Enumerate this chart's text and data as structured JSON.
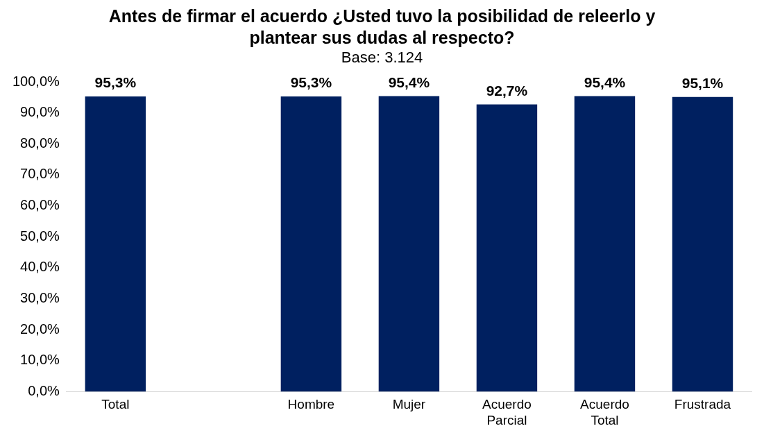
{
  "chart_data": {
    "type": "bar",
    "title": "Antes de firmar el acuerdo ¿Usted tuvo la posibilidad de releerlo y plantear sus dudas al respecto?",
    "subtitle": "Base: 3.124",
    "categories": [
      "Total",
      null,
      "Hombre",
      "Mujer",
      "Acuerdo Parcial",
      "Acuerdo Total",
      "Frustrada"
    ],
    "values": [
      95.3,
      null,
      95.3,
      95.4,
      92.7,
      95.4,
      95.1
    ],
    "value_labels": [
      "95,3%",
      null,
      "95,3%",
      "95,4%",
      "92,7%",
      "95,4%",
      "95,1%"
    ],
    "color": "#002060",
    "ylim": [
      0,
      100
    ],
    "yticks": [
      {
        "value": 0,
        "label": "0,0%"
      },
      {
        "value": 10,
        "label": "10,0%"
      },
      {
        "value": 20,
        "label": "20,0%"
      },
      {
        "value": 30,
        "label": "30,0%"
      },
      {
        "value": 40,
        "label": "40,0%"
      },
      {
        "value": 50,
        "label": "50,0%"
      },
      {
        "value": 60,
        "label": "60,0%"
      },
      {
        "value": 70,
        "label": "70,0%"
      },
      {
        "value": 80,
        "label": "80,0%"
      },
      {
        "value": 90,
        "label": "90,0%"
      },
      {
        "value": 100,
        "label": "100,0%"
      }
    ],
    "grid": false,
    "legend": false
  }
}
